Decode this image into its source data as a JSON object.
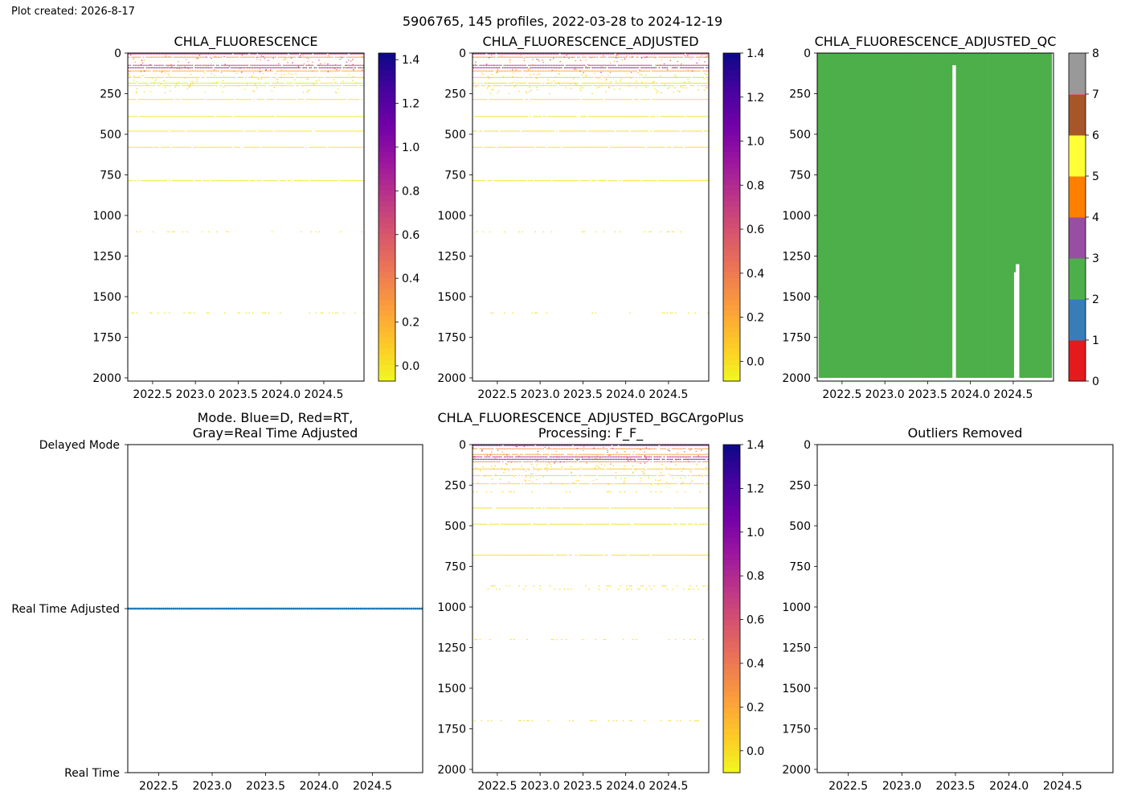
{
  "plot_created": "Plot created: 2026-8-17",
  "suptitle": "5906765, 145 profiles, 2022-03-28 to 2024-12-19",
  "colors": {
    "plasma_r": [
      "#f0f921",
      "#fdca26",
      "#fb9f3a",
      "#ed7953",
      "#d8576b",
      "#bd3786",
      "#9c179e",
      "#7201a8",
      "#46039f",
      "#0d0887"
    ],
    "qc_flags": [
      "#e41a1c",
      "#377eb8",
      "#4daf4a",
      "#984ea3",
      "#ff7f00",
      "#ffff33",
      "#a65628",
      "#f781bf",
      "#999999"
    ],
    "mode_points": "#1f77b4"
  },
  "chart_data": [
    {
      "type": "heatmap",
      "title": "CHLA_FLUORESCENCE",
      "xlim": [
        2022.21,
        2024.97
      ],
      "ylim": [
        2020,
        0
      ],
      "xticks": [
        "2022.5",
        "2023.0",
        "2023.5",
        "2024.0",
        "2024.5"
      ],
      "yticks": [
        "0",
        "250",
        "500",
        "750",
        "1000",
        "1250",
        "1500",
        "1750",
        "2000"
      ],
      "colorbar": {
        "colormap": "plasma_r",
        "range": [
          -0.07,
          1.43
        ],
        "ticks": [
          "0.0",
          "0.2",
          "0.4",
          "0.6",
          "0.8",
          "1.0",
          "1.2",
          "1.4"
        ]
      },
      "depth_bands": [
        {
          "depth": 5,
          "value": 0.75
        },
        {
          "depth": 25,
          "value": 0.3
        },
        {
          "depth": 75,
          "value": 0.7
        },
        {
          "depth": 90,
          "value": 0.9
        },
        {
          "depth": 110,
          "value": 0.2
        },
        {
          "depth": 150,
          "value": 0.05
        },
        {
          "depth": 185,
          "value": 0.02
        },
        {
          "depth": 200,
          "value": 0.02
        },
        {
          "depth": 285,
          "value": 0.0
        },
        {
          "depth": 390,
          "value": 0.0
        },
        {
          "depth": 480,
          "value": 0.0
        },
        {
          "depth": 580,
          "value": 0.0
        },
        {
          "depth": 785,
          "value": 0.0
        },
        {
          "depth": 1100,
          "value": 0.0
        },
        {
          "depth": 1600,
          "value": 0.0
        }
      ]
    },
    {
      "type": "heatmap",
      "title": "CHLA_FLUORESCENCE_ADJUSTED",
      "xlim": [
        2022.21,
        2024.97
      ],
      "ylim": [
        2020,
        0
      ],
      "xticks": [
        "2022.5",
        "2023.0",
        "2023.5",
        "2024.0",
        "2024.5"
      ],
      "yticks": [
        "0",
        "250",
        "500",
        "750",
        "1000",
        "1250",
        "1500",
        "1750",
        "2000"
      ],
      "colorbar": {
        "colormap": "plasma_r",
        "range": [
          -0.09,
          1.4
        ],
        "ticks": [
          "0.0",
          "0.2",
          "0.4",
          "0.6",
          "0.8",
          "1.0",
          "1.2",
          "1.4"
        ]
      },
      "depth_bands": [
        {
          "depth": 5,
          "value": 0.75
        },
        {
          "depth": 25,
          "value": 0.3
        },
        {
          "depth": 75,
          "value": 0.7
        },
        {
          "depth": 90,
          "value": 0.9
        },
        {
          "depth": 110,
          "value": 0.2
        },
        {
          "depth": 150,
          "value": 0.05
        },
        {
          "depth": 185,
          "value": 0.02
        },
        {
          "depth": 200,
          "value": 0.02
        },
        {
          "depth": 285,
          "value": 0.0
        },
        {
          "depth": 390,
          "value": 0.0
        },
        {
          "depth": 480,
          "value": 0.0
        },
        {
          "depth": 580,
          "value": 0.0
        },
        {
          "depth": 785,
          "value": 0.0
        },
        {
          "depth": 1100,
          "value": 0.0
        },
        {
          "depth": 1600,
          "value": 0.0
        }
      ]
    },
    {
      "type": "heatmap",
      "title": "CHLA_FLUORESCENCE_ADJUSTED_QC",
      "xlim": [
        2022.21,
        2024.97
      ],
      "ylim": [
        2020,
        0
      ],
      "xticks": [
        "2022.5",
        "2023.0",
        "2023.5",
        "2024.0",
        "2024.5"
      ],
      "yticks": [
        "0",
        "250",
        "500",
        "750",
        "1000",
        "1250",
        "1500",
        "1750",
        "2000"
      ],
      "colorbar": {
        "colormap": "qc_flags",
        "range": [
          0,
          8
        ],
        "ticks": [
          "0",
          "1",
          "2",
          "3",
          "4",
          "5",
          "6",
          "7",
          "8"
        ]
      },
      "qc_value": 2,
      "solid_block": [
        2022.21,
        2022.98
      ],
      "profile_period_years": 0.0205,
      "profile_end_year": 2024.94,
      "profile_max_depth": 2000,
      "short_profiles": [
        {
          "year": 2023.81,
          "depth": 75
        },
        {
          "year": 2024.53,
          "depth": 1350
        },
        {
          "year": 2024.55,
          "depth": 1300
        }
      ]
    },
    {
      "type": "scatter",
      "title": "Mode. Blue=D, Red=RT,\nGray=Real Time Adjusted",
      "xlim": [
        2022.21,
        2024.97
      ],
      "xticks": [
        "2022.5",
        "2023.0",
        "2023.5",
        "2024.0",
        "2024.5"
      ],
      "yticks": [
        "Delayed Mode",
        "Real Time Adjusted",
        "Real Time"
      ],
      "series": [
        {
          "x_start": 2022.21,
          "x_end": 2024.97,
          "y": "Real Time Adjusted",
          "count": 145
        }
      ]
    },
    {
      "type": "heatmap",
      "title": "CHLA_FLUORESCENCE_ADJUSTED_BGCArgoPlus\nProcessing: F_F_",
      "xlim": [
        2022.21,
        2024.97
      ],
      "ylim": [
        2020,
        0
      ],
      "xticks": [
        "2022.5",
        "2023.0",
        "2023.5",
        "2024.0",
        "2024.5"
      ],
      "yticks": [
        "0",
        "250",
        "500",
        "750",
        "1000",
        "1250",
        "1500",
        "1750",
        "2000"
      ],
      "colorbar": {
        "colormap": "plasma_r",
        "range": [
          -0.1,
          1.4
        ],
        "ticks": [
          "0.0",
          "0.2",
          "0.4",
          "0.6",
          "0.8",
          "1.0",
          "1.2",
          "1.4"
        ]
      },
      "depth_bands": [
        {
          "depth": 5,
          "value": 0.85
        },
        {
          "depth": 25,
          "value": 0.3
        },
        {
          "depth": 60,
          "value": 0.2
        },
        {
          "depth": 75,
          "value": 0.75
        },
        {
          "depth": 90,
          "value": 0.95
        },
        {
          "depth": 105,
          "value": 0.3
        },
        {
          "depth": 150,
          "value": 0.05
        },
        {
          "depth": 190,
          "value": 0.02
        },
        {
          "depth": 240,
          "value": 0.0
        },
        {
          "depth": 290,
          "value": 0.0
        },
        {
          "depth": 390,
          "value": 0.0
        },
        {
          "depth": 490,
          "value": 0.0
        },
        {
          "depth": 680,
          "value": 0.0
        },
        {
          "depth": 870,
          "value": 0.0
        },
        {
          "depth": 890,
          "value": 0.0
        },
        {
          "depth": 1200,
          "value": 0.0
        },
        {
          "depth": 1700,
          "value": 0.0
        }
      ]
    },
    {
      "type": "heatmap",
      "title": "Outliers Removed",
      "xlim": [
        2022.21,
        2024.97
      ],
      "ylim": [
        2020,
        0
      ],
      "xticks": [
        "2022.5",
        "2023.0",
        "2023.5",
        "2024.0",
        "2024.5"
      ],
      "yticks": [
        "0",
        "250",
        "500",
        "750",
        "1000",
        "1250",
        "1500",
        "1750",
        "2000"
      ],
      "depth_bands": []
    }
  ]
}
